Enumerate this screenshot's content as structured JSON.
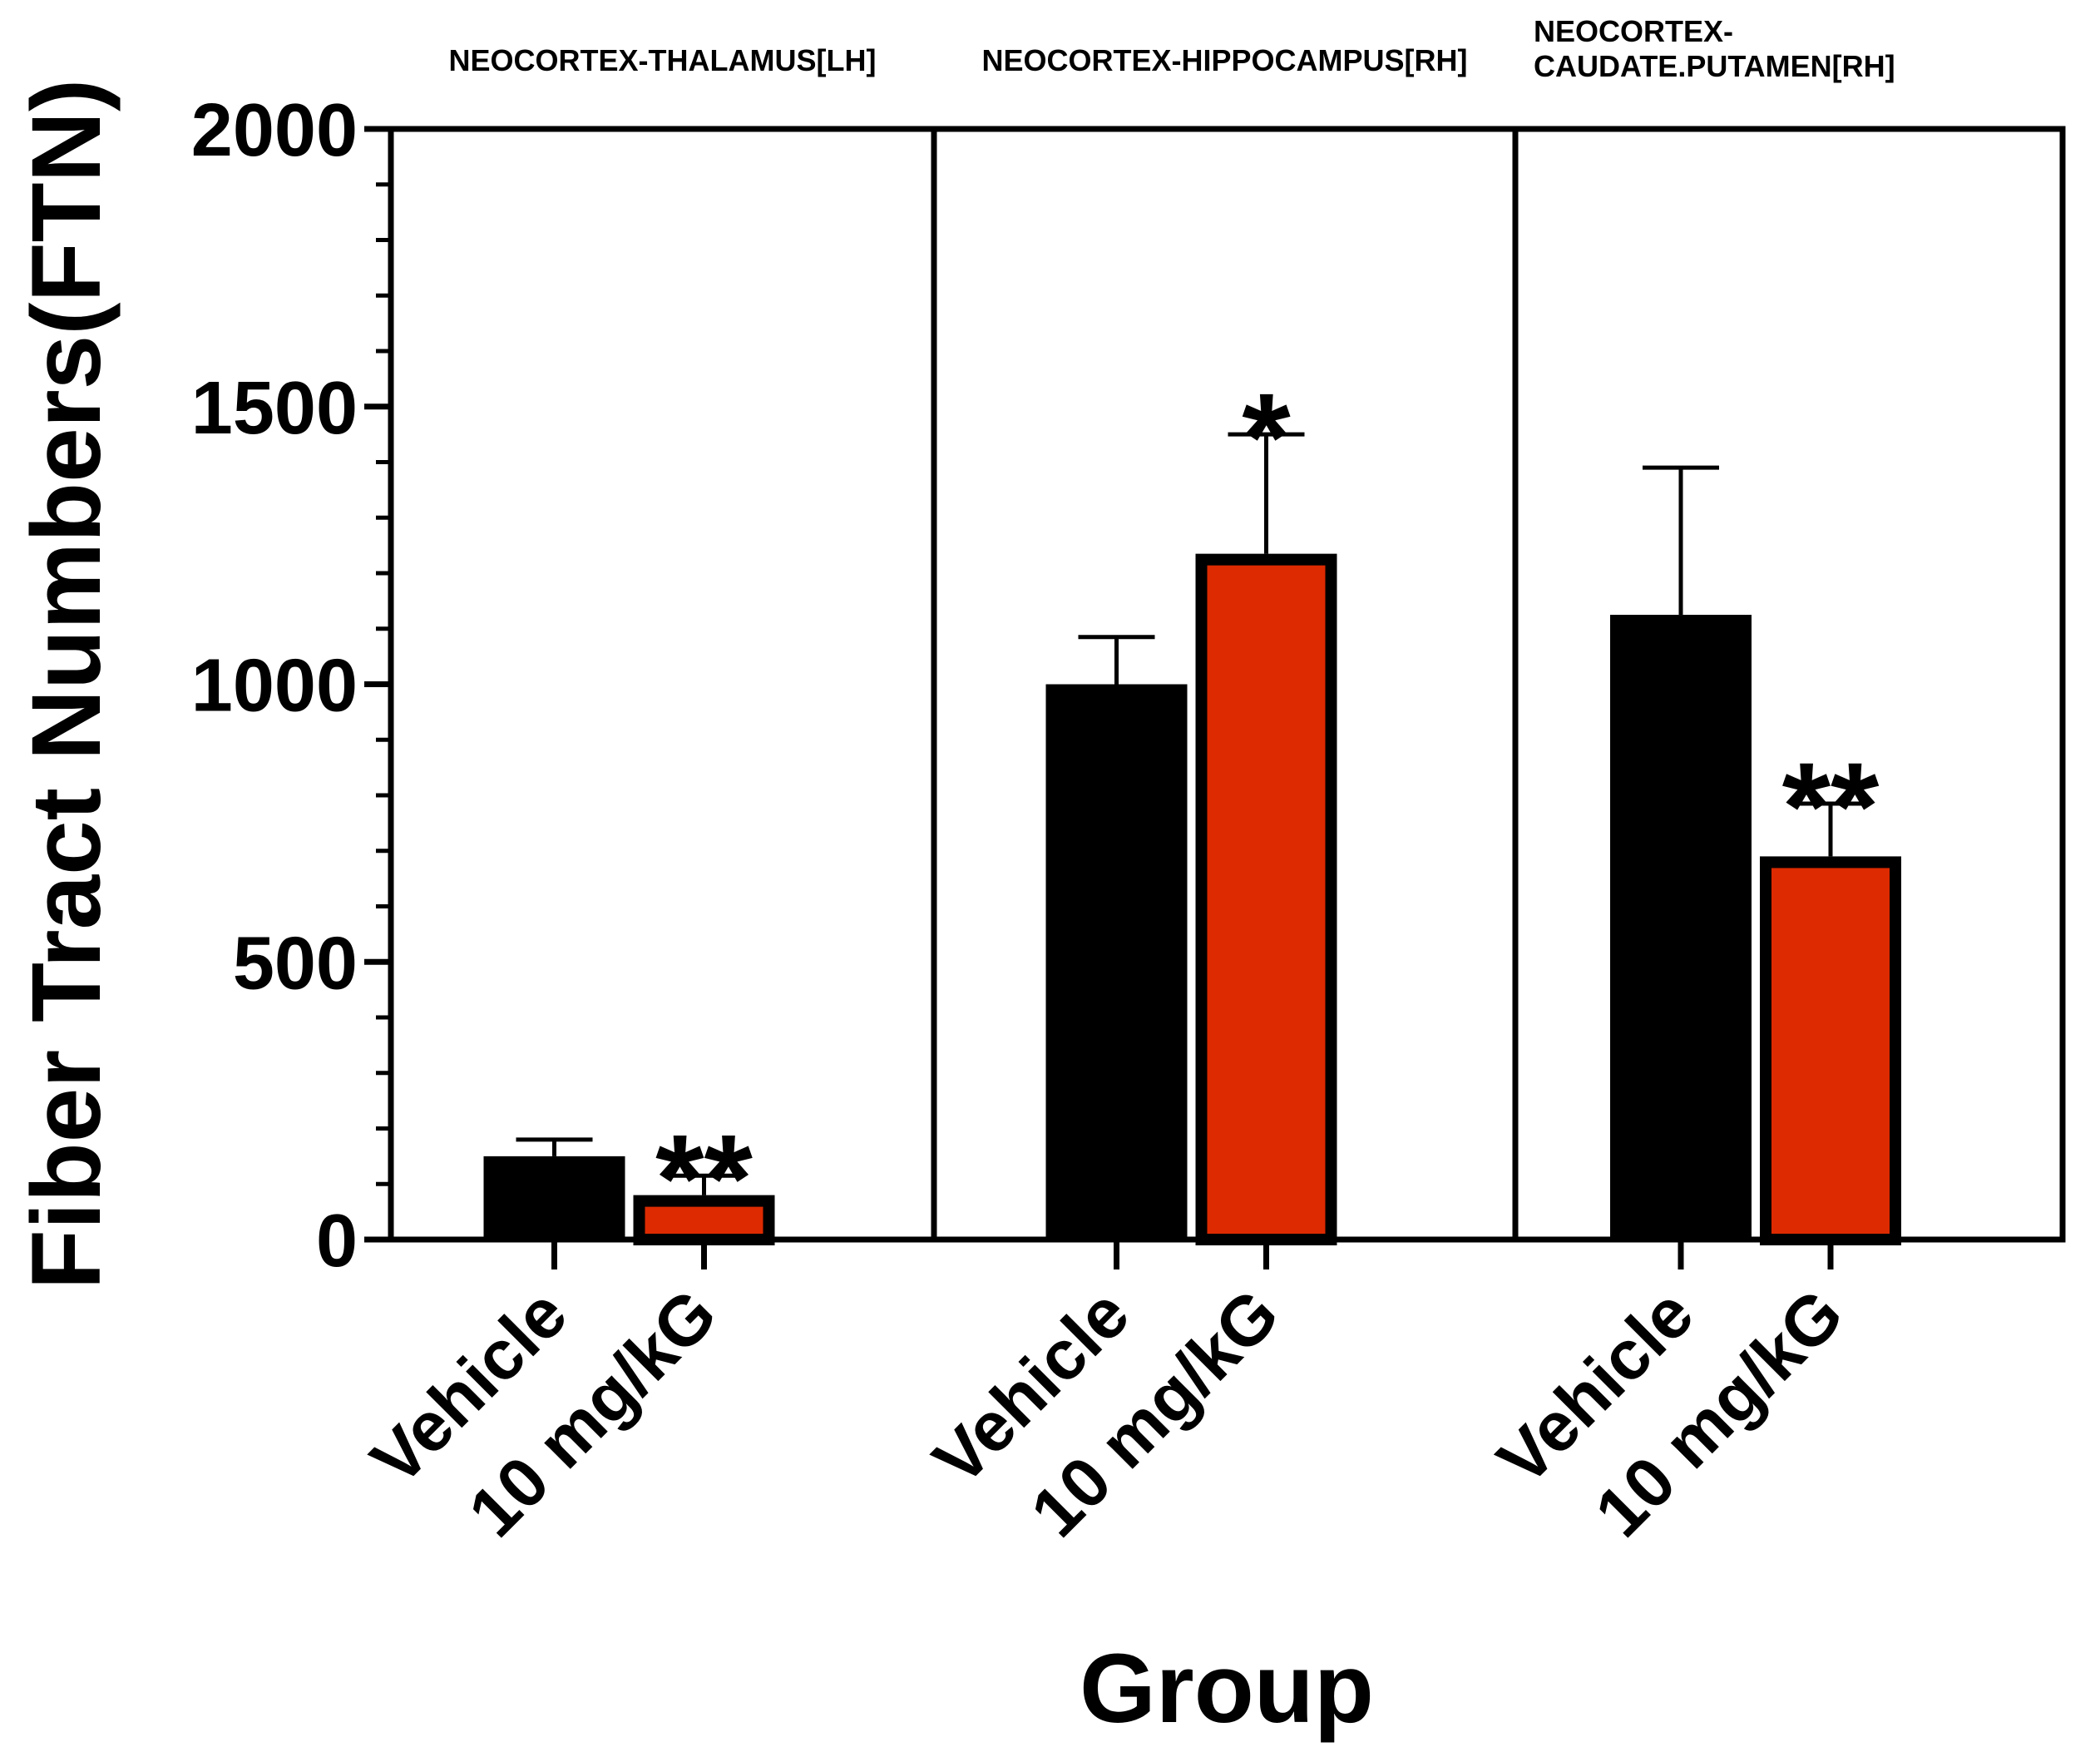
{
  "chart_data": {
    "type": "bar",
    "ylabel": "Fiber Tract Numbers(FTN)",
    "xlabel": "Group",
    "ylim": [
      0,
      2000
    ],
    "yticks": [
      "0",
      "500",
      "1000",
      "1500",
      "2000"
    ],
    "colors": {
      "Vehicle": "#000000",
      "10 mg/kG": "#dd2a00"
    },
    "panels": [
      {
        "title": [
          "NEOCORTEX-THALAMUS[LH]"
        ],
        "categories": [
          "Vehicle",
          "10 mg/kG"
        ],
        "values": [
          150,
          80
        ],
        "errors": [
          30,
          35
        ],
        "significance": [
          "",
          "**"
        ]
      },
      {
        "title": [
          "NEOCORTEX-HIPPOCAMPUS[RH]"
        ],
        "categories": [
          "Vehicle",
          "10 mg/kG"
        ],
        "values": [
          1000,
          1235
        ],
        "errors": [
          85,
          215
        ],
        "significance": [
          "",
          "*"
        ]
      },
      {
        "title": [
          "NEOCORTEX-",
          "CAUDATE.PUTAMEN[RH]"
        ],
        "categories": [
          "Vehicle",
          "10 mg/kG"
        ],
        "values": [
          1125,
          690
        ],
        "errors": [
          265,
          95
        ],
        "significance": [
          "",
          "**"
        ]
      }
    ]
  }
}
